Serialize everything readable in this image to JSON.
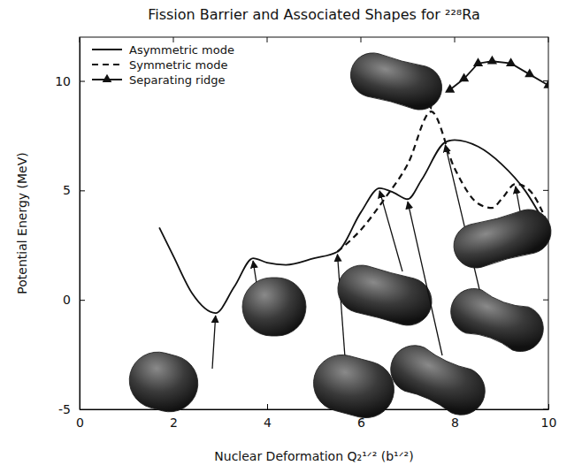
{
  "chart_data": {
    "type": "line",
    "title": "Fission Barrier and Associated Shapes for ²²⁸Ra",
    "x_label": "Nuclear Deformation Q₂¹ᐟ² (b¹ᐟ²)",
    "y_label": "Potential Energy (MeV)",
    "xlim": [
      0,
      10
    ],
    "ylim": [
      -5,
      12
    ],
    "xticks": [
      0,
      2,
      4,
      6,
      8,
      10
    ],
    "yticks": [
      -5,
      0,
      5,
      10
    ],
    "legend": "upper left",
    "grid": false,
    "series": [
      {
        "name": "Asymmetric mode",
        "color": "#111111",
        "line_style": "solid",
        "marker": "none",
        "x": [
          1.7,
          2.0,
          2.4,
          2.9,
          3.3,
          3.7,
          4.0,
          4.4,
          5.0,
          5.5,
          6.0,
          6.4,
          6.7,
          7.0,
          7.3,
          7.8,
          8.0,
          8.5,
          9.0,
          9.5,
          10.0
        ],
        "values": [
          3.3,
          2.0,
          0.3,
          -0.6,
          0.6,
          1.9,
          1.7,
          1.6,
          1.9,
          2.2,
          4.0,
          5.1,
          4.9,
          4.6,
          5.5,
          7.2,
          7.3,
          7.0,
          6.2,
          5.0,
          3.2
        ]
      },
      {
        "name": "Symmetric mode",
        "color": "#111111",
        "line_style": "dashed",
        "marker": "none",
        "x": [
          5.5,
          6.0,
          6.5,
          7.0,
          7.5,
          8.0,
          8.5,
          8.8,
          9.0,
          9.3,
          9.6,
          10.0
        ],
        "values": [
          2.2,
          3.2,
          4.6,
          6.2,
          8.6,
          6.0,
          4.4,
          4.2,
          4.6,
          5.3,
          5.0,
          3.4
        ]
      },
      {
        "name": "Separating ridge",
        "color": "#111111",
        "line_style": "solid",
        "marker": "triangle",
        "x": [
          7.9,
          8.2,
          8.5,
          8.8,
          9.2,
          9.6,
          10.0
        ],
        "values": [
          9.6,
          10.1,
          10.8,
          10.9,
          10.8,
          10.3,
          9.8
        ]
      }
    ]
  }
}
